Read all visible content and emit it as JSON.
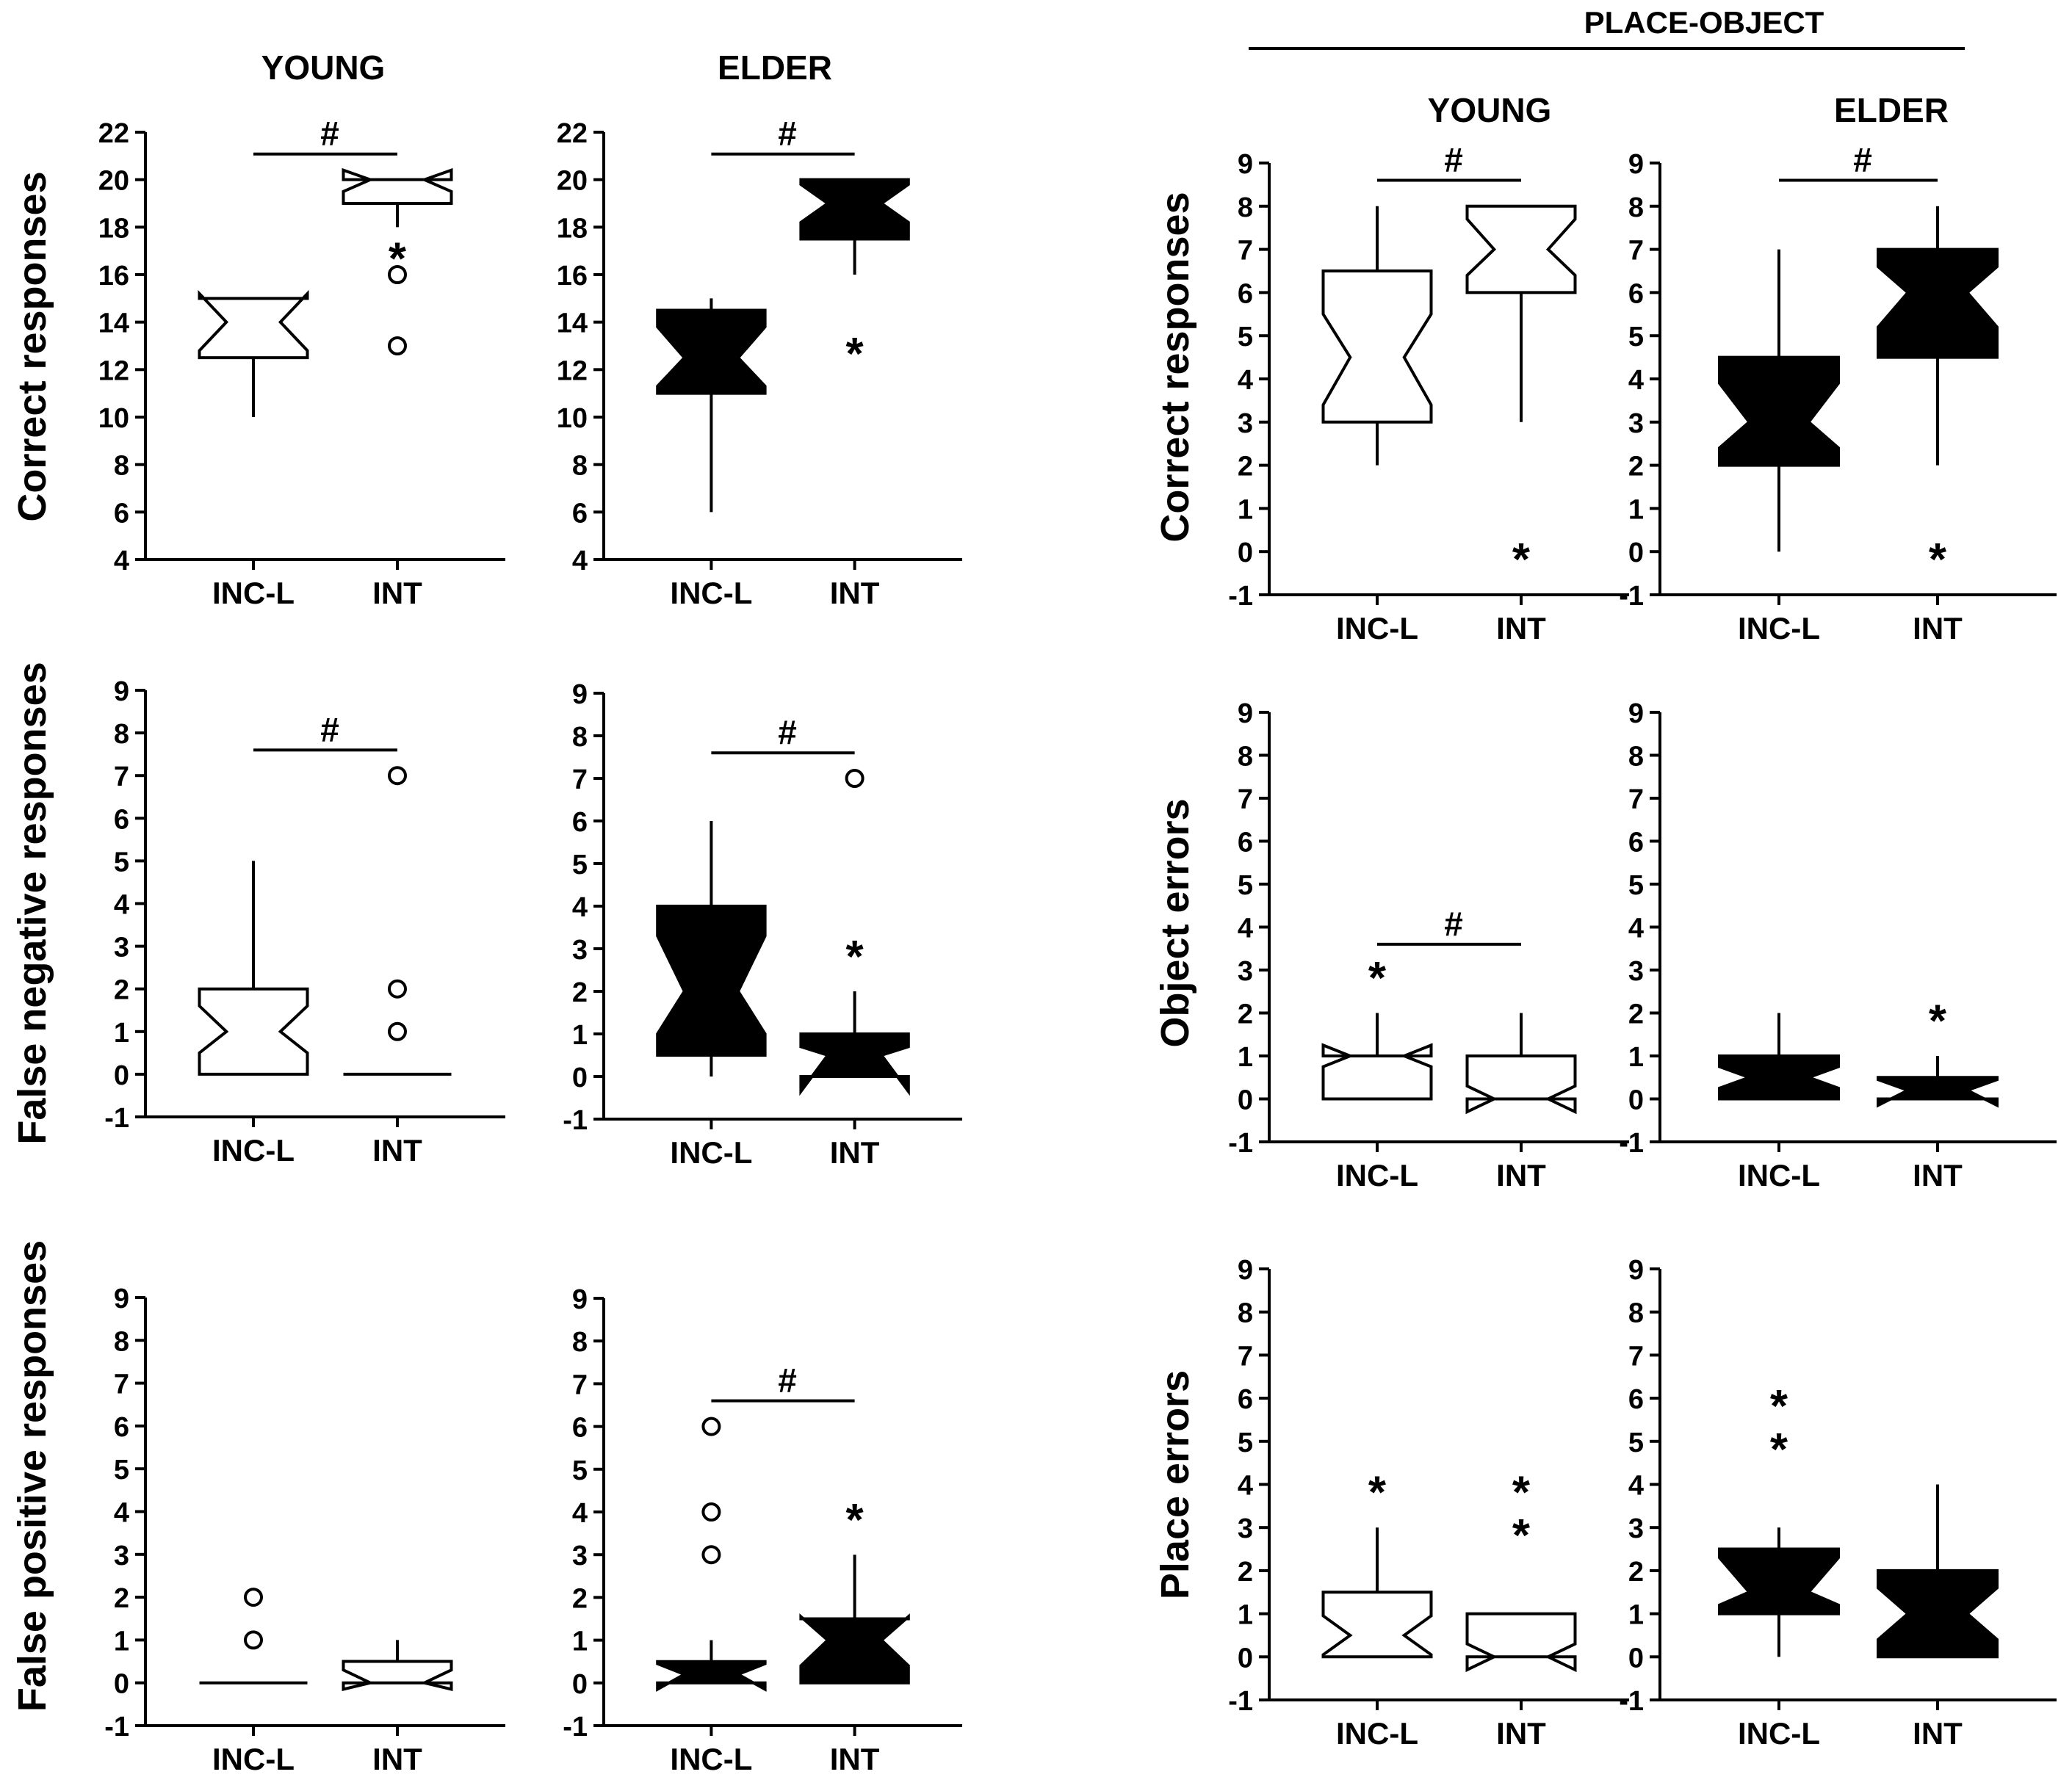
{
  "figure": {
    "group_labels": {
      "left_young": "YOUNG",
      "left_elder": "ELDER",
      "place_object": "PLACE-OBJECT",
      "right_young": "YOUNG",
      "right_elder": "ELDER"
    },
    "row_labels": {
      "correct_left": "Correct responses",
      "false_negative": "False negative responses",
      "false_positive": "False positive responses",
      "correct_right": "Correct responses",
      "object_errors": "Object errors",
      "place_errors": "Place errors"
    },
    "categories": [
      "INC-L",
      "INT"
    ],
    "significance_symbol": "#",
    "outlier_symbol": "○",
    "extreme_symbol": "*",
    "colors": {
      "young_fill": "#ffffff",
      "elder_fill": "#000000",
      "line": "#000000"
    }
  },
  "chart_data": [
    {
      "id": "young-correct",
      "type": "boxplot",
      "group": "YOUNG",
      "ylabel": "Correct responses",
      "categories": [
        "INC-L",
        "INT"
      ],
      "yticks": [
        4,
        6,
        8,
        10,
        12,
        14,
        16,
        18,
        20,
        22
      ],
      "ylim": [
        4,
        22
      ],
      "fill": "white",
      "significance": "#",
      "boxes": [
        {
          "category": "INC-L",
          "q1": 12.5,
          "median": 14,
          "q3": 15,
          "notch_low": 12.8,
          "notch_high": 15.2,
          "whisker_low": 10,
          "whisker_high": 15,
          "outliers": [],
          "extremes": []
        },
        {
          "category": "INT",
          "q1": 19,
          "median": 20,
          "q3": 20,
          "notch_low": 19.5,
          "notch_high": 20.4,
          "whisker_low": 18,
          "whisker_high": 20,
          "outliers": [
            16,
            13
          ],
          "extremes": [
            17
          ]
        }
      ]
    },
    {
      "id": "elder-correct",
      "type": "boxplot",
      "group": "ELDER",
      "ylabel": "",
      "categories": [
        "INC-L",
        "INT"
      ],
      "yticks": [
        4,
        6,
        8,
        10,
        12,
        14,
        16,
        18,
        20,
        22
      ],
      "ylim": [
        4,
        22
      ],
      "fill": "black",
      "significance": "#",
      "boxes": [
        {
          "category": "INC-L",
          "q1": 11,
          "median": 12.5,
          "q3": 14.5,
          "notch_low": 11.3,
          "notch_high": 13.8,
          "whisker_low": 6,
          "whisker_high": 15,
          "outliers": [],
          "extremes": []
        },
        {
          "category": "INT",
          "q1": 17.5,
          "median": 19,
          "q3": 20,
          "notch_low": 18.2,
          "notch_high": 19.8,
          "whisker_low": 16,
          "whisker_high": 20,
          "outliers": [],
          "extremes": [
            13
          ]
        }
      ]
    },
    {
      "id": "young-false-negative",
      "type": "boxplot",
      "group": "YOUNG",
      "ylabel": "False negative responses",
      "categories": [
        "INC-L",
        "INT"
      ],
      "yticks": [
        -1,
        0,
        1,
        2,
        3,
        4,
        5,
        6,
        7,
        8,
        9
      ],
      "ylim": [
        -1,
        9
      ],
      "fill": "white",
      "significance": "#",
      "boxes": [
        {
          "category": "INC-L",
          "q1": 0,
          "median": 1,
          "q3": 2,
          "notch_low": 0.5,
          "notch_high": 1.6,
          "whisker_low": 0,
          "whisker_high": 5,
          "outliers": [],
          "extremes": []
        },
        {
          "category": "INT",
          "q1": 0,
          "median": 0,
          "q3": 0,
          "notch_low": 0,
          "notch_high": 0,
          "whisker_low": 0,
          "whisker_high": 0,
          "outliers": [
            7,
            2,
            1
          ],
          "extremes": []
        }
      ]
    },
    {
      "id": "elder-false-negative",
      "type": "boxplot",
      "group": "ELDER",
      "ylabel": "",
      "categories": [
        "INC-L",
        "INT"
      ],
      "yticks": [
        -1,
        0,
        1,
        2,
        3,
        4,
        5,
        6,
        7,
        8,
        9
      ],
      "ylim": [
        -1,
        9
      ],
      "fill": "black",
      "significance": "#",
      "boxes": [
        {
          "category": "INC-L",
          "q1": 0.5,
          "median": 2,
          "q3": 4,
          "notch_low": 1.0,
          "notch_high": 3.3,
          "whisker_low": 0,
          "whisker_high": 6,
          "outliers": [],
          "extremes": []
        },
        {
          "category": "INT",
          "q1": 0,
          "median": 0.5,
          "q3": 1,
          "notch_low": -0.35,
          "notch_high": 0.7,
          "whisker_low": 0,
          "whisker_high": 2,
          "outliers": [
            7
          ],
          "extremes": [
            3
          ]
        }
      ]
    },
    {
      "id": "young-false-positive",
      "type": "boxplot",
      "group": "YOUNG",
      "ylabel": "False positive responses",
      "categories": [
        "INC-L",
        "INT"
      ],
      "yticks": [
        -1,
        0,
        1,
        2,
        3,
        4,
        5,
        6,
        7,
        8,
        9
      ],
      "ylim": [
        -1,
        9
      ],
      "fill": "white",
      "significance": "",
      "boxes": [
        {
          "category": "INC-L",
          "q1": 0,
          "median": 0,
          "q3": 0,
          "notch_low": 0,
          "notch_high": 0,
          "whisker_low": 0,
          "whisker_high": 0,
          "outliers": [
            2,
            1
          ],
          "extremes": []
        },
        {
          "category": "INT",
          "q1": 0,
          "median": 0,
          "q3": 0.5,
          "notch_low": -0.15,
          "notch_high": 0.3,
          "whisker_low": 0,
          "whisker_high": 1,
          "outliers": [],
          "extremes": []
        }
      ]
    },
    {
      "id": "elder-false-positive",
      "type": "boxplot",
      "group": "ELDER",
      "ylabel": "",
      "categories": [
        "INC-L",
        "INT"
      ],
      "yticks": [
        -1,
        0,
        1,
        2,
        3,
        4,
        5,
        6,
        7,
        8,
        9
      ],
      "ylim": [
        -1,
        9
      ],
      "fill": "black",
      "significance": "#",
      "boxes": [
        {
          "category": "INC-L",
          "q1": 0,
          "median": 0.2,
          "q3": 0.5,
          "notch_low": -0.15,
          "notch_high": 0.45,
          "whisker_low": 0,
          "whisker_high": 1,
          "outliers": [
            6,
            4,
            3
          ],
          "extremes": []
        },
        {
          "category": "INT",
          "q1": 0,
          "median": 1,
          "q3": 1.5,
          "notch_low": 0.4,
          "notch_high": 1.55,
          "whisker_low": 0,
          "whisker_high": 3,
          "outliers": [],
          "extremes": [
            4
          ]
        }
      ]
    },
    {
      "id": "po-young-correct",
      "type": "boxplot",
      "group": "PLACE-OBJECT YOUNG",
      "ylabel": "Correct responses",
      "categories": [
        "INC-L",
        "INT"
      ],
      "yticks": [
        -1,
        0,
        1,
        2,
        3,
        4,
        5,
        6,
        7,
        8,
        9
      ],
      "ylim": [
        -1,
        9
      ],
      "fill": "white",
      "significance": "#",
      "boxes": [
        {
          "category": "INC-L",
          "q1": 3,
          "median": 4.5,
          "q3": 6.5,
          "notch_low": 3.4,
          "notch_high": 5.5,
          "whisker_low": 2,
          "whisker_high": 8,
          "outliers": [],
          "extremes": []
        },
        {
          "category": "INT",
          "q1": 6,
          "median": 7,
          "q3": 8,
          "notch_low": 6.4,
          "notch_high": 7.7,
          "whisker_low": 3,
          "whisker_high": 8,
          "outliers": [],
          "extremes": [
            0
          ]
        }
      ]
    },
    {
      "id": "po-elder-correct",
      "type": "boxplot",
      "group": "PLACE-OBJECT ELDER",
      "ylabel": "",
      "categories": [
        "INC-L",
        "INT"
      ],
      "yticks": [
        -1,
        0,
        1,
        2,
        3,
        4,
        5,
        6,
        7,
        8,
        9
      ],
      "ylim": [
        -1,
        9
      ],
      "fill": "black",
      "significance": "#",
      "boxes": [
        {
          "category": "INC-L",
          "q1": 2,
          "median": 3,
          "q3": 4.5,
          "notch_low": 2.4,
          "notch_high": 3.9,
          "whisker_low": 0,
          "whisker_high": 7,
          "outliers": [],
          "extremes": []
        },
        {
          "category": "INT",
          "q1": 4.5,
          "median": 6,
          "q3": 7,
          "notch_low": 5.2,
          "notch_high": 6.6,
          "whisker_low": 2,
          "whisker_high": 8,
          "outliers": [],
          "extremes": [
            0
          ]
        }
      ]
    },
    {
      "id": "po-young-object-errors",
      "type": "boxplot",
      "group": "PLACE-OBJECT YOUNG",
      "ylabel": "Object errors",
      "categories": [
        "INC-L",
        "INT"
      ],
      "yticks": [
        -1,
        0,
        1,
        2,
        3,
        4,
        5,
        6,
        7,
        8,
        9
      ],
      "ylim": [
        -1,
        9
      ],
      "fill": "white",
      "significance": "#",
      "boxes": [
        {
          "category": "INC-L",
          "q1": 0,
          "median": 1,
          "q3": 1,
          "notch_low": 0.75,
          "notch_high": 1.25,
          "whisker_low": 0,
          "whisker_high": 2,
          "outliers": [],
          "extremes": [
            3
          ]
        },
        {
          "category": "INT",
          "q1": 0,
          "median": 0,
          "q3": 1,
          "notch_low": -0.3,
          "notch_high": 0.3,
          "whisker_low": 0,
          "whisker_high": 2,
          "outliers": [],
          "extremes": []
        }
      ]
    },
    {
      "id": "po-elder-object-errors",
      "type": "boxplot",
      "group": "PLACE-OBJECT ELDER",
      "ylabel": "",
      "categories": [
        "INC-L",
        "INT"
      ],
      "yticks": [
        -1,
        0,
        1,
        2,
        3,
        4,
        5,
        6,
        7,
        8,
        9
      ],
      "ylim": [
        -1,
        9
      ],
      "fill": "black",
      "significance": "",
      "boxes": [
        {
          "category": "INC-L",
          "q1": 0,
          "median": 0.5,
          "q3": 1,
          "notch_low": 0.25,
          "notch_high": 0.75,
          "whisker_low": 0,
          "whisker_high": 2,
          "outliers": [],
          "extremes": []
        },
        {
          "category": "INT",
          "q1": 0,
          "median": 0.2,
          "q3": 0.5,
          "notch_low": -0.15,
          "notch_high": 0.45,
          "whisker_low": 0,
          "whisker_high": 1,
          "outliers": [],
          "extremes": [
            2
          ]
        }
      ]
    },
    {
      "id": "po-young-place-errors",
      "type": "boxplot",
      "group": "PLACE-OBJECT YOUNG",
      "ylabel": "Place errors",
      "categories": [
        "INC-L",
        "INT"
      ],
      "yticks": [
        -1,
        0,
        1,
        2,
        3,
        4,
        5,
        6,
        7,
        8,
        9
      ],
      "ylim": [
        -1,
        9
      ],
      "fill": "white",
      "significance": "",
      "boxes": [
        {
          "category": "INC-L",
          "q1": 0,
          "median": 0.5,
          "q3": 1.5,
          "notch_low": 0.05,
          "notch_high": 0.95,
          "whisker_low": 0,
          "whisker_high": 3,
          "outliers": [],
          "extremes": [
            4
          ]
        },
        {
          "category": "INT",
          "q1": 0,
          "median": 0,
          "q3": 1,
          "notch_low": -0.3,
          "notch_high": 0.3,
          "whisker_low": 0,
          "whisker_high": 1,
          "outliers": [],
          "extremes": [
            4,
            3
          ]
        }
      ]
    },
    {
      "id": "po-elder-place-errors",
      "type": "boxplot",
      "group": "PLACE-OBJECT ELDER",
      "ylabel": "",
      "categories": [
        "INC-L",
        "INT"
      ],
      "yticks": [
        -1,
        0,
        1,
        2,
        3,
        4,
        5,
        6,
        7,
        8,
        9
      ],
      "ylim": [
        -1,
        9
      ],
      "fill": "black",
      "significance": "",
      "boxes": [
        {
          "category": "INC-L",
          "q1": 1,
          "median": 1.5,
          "q3": 2.5,
          "notch_low": 1.2,
          "notch_high": 2.3,
          "whisker_low": 0,
          "whisker_high": 3,
          "outliers": [],
          "extremes": [
            6,
            5
          ]
        },
        {
          "category": "INT",
          "q1": 0,
          "median": 1,
          "q3": 2,
          "notch_low": 0.4,
          "notch_high": 1.6,
          "whisker_low": 0,
          "whisker_high": 4,
          "outliers": [],
          "extremes": []
        }
      ]
    }
  ]
}
